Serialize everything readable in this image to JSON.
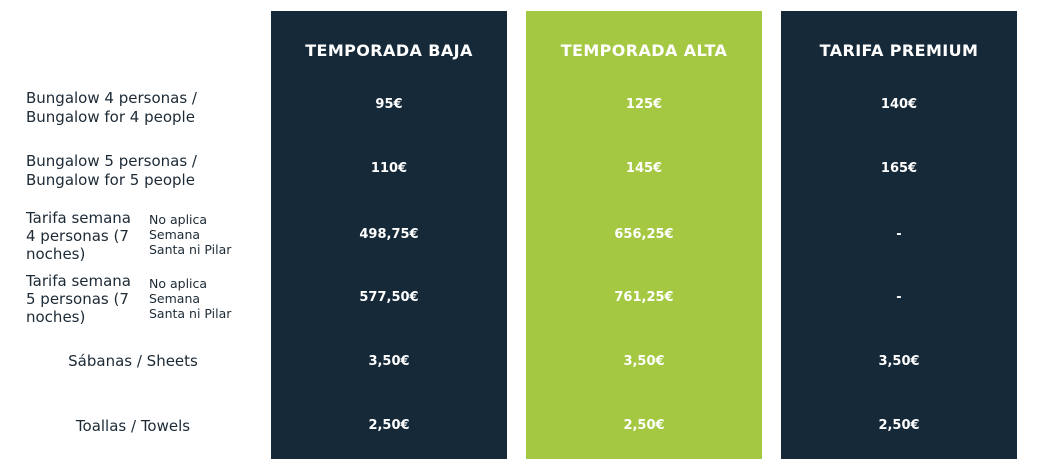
{
  "columns": [
    {
      "title": "TEMPORADA BAJA"
    },
    {
      "title": "TEMPORADA ALTA"
    },
    {
      "title": "TARIFA PREMIUM"
    }
  ],
  "rows": [
    {
      "label_line1": "Bungalow 4 personas /",
      "label_line2": "Bungalow for 4 people",
      "prices": [
        "95€",
        "125€",
        "140€"
      ]
    },
    {
      "label_line1": "Bungalow 5 personas /",
      "label_line2": "Bungalow for 5 people",
      "prices": [
        "110€",
        "145€",
        "165€"
      ]
    },
    {
      "label_line1": "Tarifa semana",
      "label_line2": "4 personas (7",
      "label_line3": "noches)",
      "note_line1": "No aplica",
      "note_line2": "Semana",
      "note_line3": "Santa ni Pilar",
      "prices": [
        "498,75€",
        "656,25€",
        "-"
      ]
    },
    {
      "label_line1": "Tarifa semana",
      "label_line2": "5 personas (7",
      "label_line3": "noches)",
      "note_line1": "No aplica",
      "note_line2": "Semana",
      "note_line3": "Santa ni Pilar",
      "prices": [
        "577,50€",
        "761,25€",
        "-"
      ]
    },
    {
      "label": "Sábanas / Sheets",
      "prices": [
        "3,50€",
        "3,50€",
        "3,50€"
      ]
    },
    {
      "label": "Toallas / Towels",
      "prices": [
        "2,50€",
        "2,50€",
        "2,50€"
      ]
    }
  ],
  "colors": {
    "dark_column": "#162938",
    "highlight_column": "#a5c842",
    "header_text": "#ffffff",
    "label_text": "#1c2a36"
  }
}
